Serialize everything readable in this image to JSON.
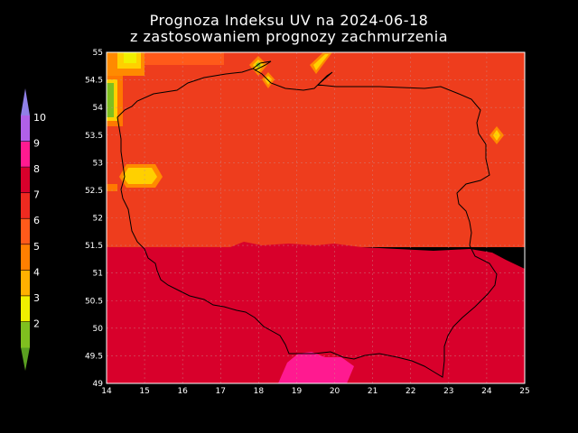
{
  "title_line1": "Prognoza Indeksu UV na 2024-06-18",
  "title_line2": "z zastosowaniem prognozy zachmurzenia",
  "x_ticks": [
    "14",
    "15",
    "16",
    "17",
    "18",
    "19",
    "20",
    "21",
    "22",
    "23",
    "24",
    "25"
  ],
  "y_ticks": [
    "55",
    "54.5",
    "54",
    "53.5",
    "53",
    "52.5",
    "52",
    "51.5",
    "51",
    "50.5",
    "50",
    "49.5",
    "49"
  ],
  "legend": {
    "labels": [
      "2",
      "3",
      "4",
      "5",
      "6",
      "7",
      "8",
      "9",
      "10"
    ],
    "colors": [
      "#7fbf1f",
      "#f0f000",
      "#ffb000",
      "#ff7f00",
      "#ff5a1a",
      "#ee2a20",
      "#d8002b",
      "#ff1a90",
      "#b060e8"
    ]
  },
  "colors": {
    "uv7": "#ee3d1d",
    "uv8": "#d8002b",
    "uv9": "#ff1a90",
    "uv6": "#ff7800",
    "uv5": "#ffa000",
    "uv4": "#ffd000",
    "uv3": "#f0f000",
    "uv2": "#7fbf1f"
  }
}
